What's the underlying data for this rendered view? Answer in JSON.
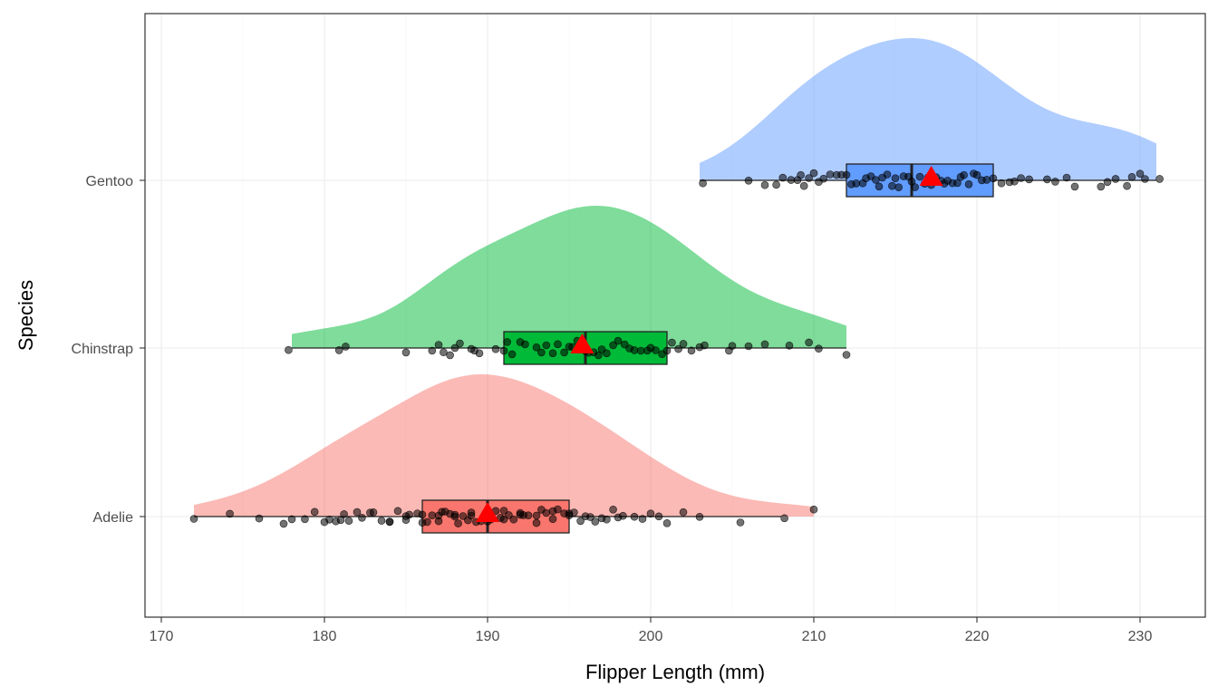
{
  "chart_data": {
    "type": "raincloud",
    "xlabel": "Flipper Length (mm)",
    "ylabel": "Species",
    "xlim": [
      169,
      234
    ],
    "x_ticks": [
      170,
      180,
      190,
      200,
      210,
      220,
      230
    ],
    "y_ticks": [
      "Gentoo",
      "Chinstrap",
      "Adelie"
    ],
    "grid": true,
    "legend": "none",
    "mean_marker": "red triangle",
    "series": [
      {
        "name": "Adelie",
        "color": "#F8766D",
        "density_range": [
          172,
          210
        ],
        "density_peak": 190,
        "box": {
          "min": 172,
          "q1": 186,
          "median": 190,
          "q3": 195,
          "max": 208
        },
        "mean": 190,
        "outliers": [
          210
        ],
        "points": [
          172,
          174.2,
          176,
          177.5,
          178,
          178.8,
          179.4,
          180,
          180.3,
          180.7,
          181,
          181.2,
          181.5,
          182,
          182.3,
          182.8,
          183,
          183.5,
          184,
          184,
          184.5,
          185,
          185,
          185.2,
          185.7,
          186,
          186,
          186.3,
          186.6,
          187,
          187,
          187.2,
          187.4,
          187.7,
          188,
          188,
          188.2,
          188.5,
          188.8,
          189,
          189,
          189.3,
          189.6,
          190,
          190,
          190,
          190.2,
          190.5,
          190.8,
          191,
          191,
          191.3,
          191.6,
          192,
          192,
          192.2,
          192.5,
          193,
          193,
          193.3,
          193.6,
          194,
          194,
          194.3,
          194.7,
          195,
          195,
          195.3,
          195.7,
          196,
          196.3,
          196.6,
          197,
          197.3,
          197.7,
          198,
          198.3,
          199,
          199.5,
          200,
          200.5,
          201,
          202,
          203,
          205.5,
          208.2,
          210
        ]
      },
      {
        "name": "Chinstrap",
        "color": "#00BA38",
        "density_range": [
          178,
          212
        ],
        "density_peak": 196,
        "box": {
          "min": 178,
          "q1": 191,
          "median": 196,
          "q3": 201,
          "max": 212
        },
        "mean": 195.8,
        "points": [
          177.8,
          180.9,
          181.3,
          185,
          186.6,
          187,
          187.3,
          187.7,
          188,
          188.3,
          189,
          189.2,
          189.5,
          190.5,
          191,
          191.2,
          191.5,
          192,
          192.3,
          193,
          193.3,
          193.6,
          194,
          194.3,
          194.7,
          195,
          195.2,
          195.5,
          195.8,
          196,
          196.2,
          196.5,
          196.8,
          197,
          197.3,
          197.7,
          198,
          198.4,
          198.7,
          199,
          199.4,
          199.8,
          200,
          200.3,
          200.7,
          201,
          201.3,
          201.7,
          202,
          202.5,
          203,
          203.3,
          204.8,
          205,
          206,
          207,
          208.5,
          209.7,
          210.3,
          212
        ]
      },
      {
        "name": "Gentoo",
        "color": "#619CFF",
        "density_range": [
          203,
          231
        ],
        "density_peak": 215.5,
        "box": {
          "min": 203,
          "q1": 212,
          "median": 216,
          "q3": 221,
          "max": 231
        },
        "mean": 217.2,
        "points": [
          203.2,
          206,
          207,
          207.7,
          208.1,
          208.6,
          209,
          209.2,
          209.4,
          209.7,
          210,
          210.3,
          210.6,
          211,
          211.4,
          211.7,
          212,
          212.3,
          212.6,
          213,
          213.2,
          213.5,
          213.8,
          214,
          214.2,
          214.5,
          214.8,
          215,
          215.2,
          215.5,
          215.8,
          216,
          216.2,
          216.5,
          216.8,
          217,
          217.2,
          217.5,
          217.8,
          218,
          218.2,
          218.5,
          218.8,
          219,
          219.2,
          219.5,
          219.8,
          220,
          220.3,
          220.6,
          221,
          221.5,
          222,
          222.3,
          222.7,
          223.2,
          224.3,
          224.8,
          225.5,
          226,
          227.6,
          228,
          228.5,
          229.2,
          229.5,
          230,
          230.3,
          231.2
        ]
      }
    ]
  }
}
